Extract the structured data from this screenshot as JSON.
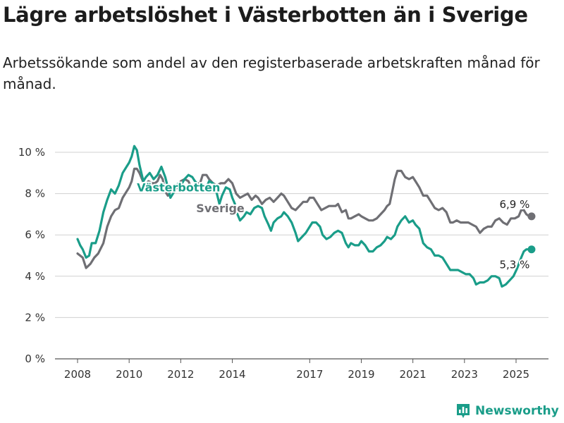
{
  "title": "Lägre arbetslöshet i Västerbotten än i Sverige",
  "subtitle": "Arbetssökande som andel av den registerbaserade arbetskraften månad för månad.",
  "brand": {
    "name": "Newsworthy",
    "icon": "bar-chart-icon",
    "color": "#1a9d89"
  },
  "chart_data": {
    "type": "line",
    "xlabel": "",
    "ylabel": "",
    "xlim": [
      2007.6,
      2026.3
    ],
    "ylim": [
      0,
      10
    ],
    "grid": true,
    "y_ticks": [
      0,
      2,
      4,
      6,
      8,
      10
    ],
    "y_tick_labels": [
      "0 %",
      "2 %",
      "4 %",
      "6 %",
      "8 %",
      "10 %"
    ],
    "x_ticks": [
      2008,
      2010,
      2012,
      2014,
      2017,
      2019,
      2021,
      2023,
      2025
    ],
    "x_tick_labels": [
      "2008",
      "2010",
      "2012",
      "2014",
      "2017",
      "2019",
      "2021",
      "2023",
      "2025"
    ],
    "series": [
      {
        "name": "Sverige",
        "color": "#6f6f74",
        "end_label": "6,9 %",
        "label_at": [
          2012.6,
          7.1
        ],
        "points": [
          [
            2008.0,
            5.1
          ],
          [
            2008.2,
            4.9
          ],
          [
            2008.33,
            4.4
          ],
          [
            2008.5,
            4.6
          ],
          [
            2008.65,
            4.9
          ],
          [
            2008.8,
            5.1
          ],
          [
            2009.0,
            5.6
          ],
          [
            2009.15,
            6.4
          ],
          [
            2009.3,
            6.9
          ],
          [
            2009.45,
            7.2
          ],
          [
            2009.6,
            7.3
          ],
          [
            2009.75,
            7.8
          ],
          [
            2009.9,
            8.1
          ],
          [
            2010.0,
            8.3
          ],
          [
            2010.1,
            8.6
          ],
          [
            2010.2,
            9.2
          ],
          [
            2010.3,
            9.2
          ],
          [
            2010.4,
            9.0
          ],
          [
            2010.5,
            8.7
          ],
          [
            2010.6,
            8.4
          ],
          [
            2010.75,
            8.6
          ],
          [
            2010.9,
            8.5
          ],
          [
            2011.0,
            8.5
          ],
          [
            2011.1,
            8.6
          ],
          [
            2011.2,
            8.9
          ],
          [
            2011.3,
            8.7
          ],
          [
            2011.4,
            8.1
          ],
          [
            2011.5,
            7.9
          ],
          [
            2011.6,
            8.1
          ],
          [
            2011.75,
            8.2
          ],
          [
            2011.9,
            8.3
          ],
          [
            2012.0,
            8.6
          ],
          [
            2012.15,
            8.7
          ],
          [
            2012.3,
            8.6
          ],
          [
            2012.4,
            8.3
          ],
          [
            2012.5,
            8.4
          ],
          [
            2012.6,
            8.5
          ],
          [
            2012.75,
            8.5
          ],
          [
            2012.85,
            8.9
          ],
          [
            2013.0,
            8.9
          ],
          [
            2013.1,
            8.7
          ],
          [
            2013.25,
            8.5
          ],
          [
            2013.4,
            8.4
          ],
          [
            2013.55,
            8.5
          ],
          [
            2013.7,
            8.5
          ],
          [
            2013.85,
            8.7
          ],
          [
            2014.0,
            8.5
          ],
          [
            2014.15,
            8.0
          ],
          [
            2014.3,
            7.8
          ],
          [
            2014.45,
            7.9
          ],
          [
            2014.6,
            8.0
          ],
          [
            2014.75,
            7.7
          ],
          [
            2014.9,
            7.9
          ],
          [
            2015.0,
            7.8
          ],
          [
            2015.15,
            7.5
          ],
          [
            2015.3,
            7.7
          ],
          [
            2015.45,
            7.8
          ],
          [
            2015.6,
            7.6
          ],
          [
            2015.75,
            7.8
          ],
          [
            2015.9,
            8.0
          ],
          [
            2016.0,
            7.9
          ],
          [
            2016.15,
            7.6
          ],
          [
            2016.3,
            7.3
          ],
          [
            2016.45,
            7.2
          ],
          [
            2016.6,
            7.4
          ],
          [
            2016.75,
            7.6
          ],
          [
            2016.9,
            7.6
          ],
          [
            2017.0,
            7.8
          ],
          [
            2017.15,
            7.8
          ],
          [
            2017.3,
            7.5
          ],
          [
            2017.45,
            7.2
          ],
          [
            2017.6,
            7.3
          ],
          [
            2017.75,
            7.4
          ],
          [
            2017.9,
            7.4
          ],
          [
            2018.0,
            7.4
          ],
          [
            2018.1,
            7.5
          ],
          [
            2018.25,
            7.1
          ],
          [
            2018.4,
            7.2
          ],
          [
            2018.5,
            6.8
          ],
          [
            2018.6,
            6.8
          ],
          [
            2018.75,
            6.9
          ],
          [
            2018.9,
            7.0
          ],
          [
            2019.0,
            6.9
          ],
          [
            2019.15,
            6.8
          ],
          [
            2019.3,
            6.7
          ],
          [
            2019.45,
            6.7
          ],
          [
            2019.6,
            6.8
          ],
          [
            2019.75,
            7.0
          ],
          [
            2019.9,
            7.2
          ],
          [
            2020.0,
            7.4
          ],
          [
            2020.1,
            7.5
          ],
          [
            2020.2,
            8.1
          ],
          [
            2020.3,
            8.7
          ],
          [
            2020.4,
            9.1
          ],
          [
            2020.55,
            9.1
          ],
          [
            2020.7,
            8.8
          ],
          [
            2020.85,
            8.7
          ],
          [
            2021.0,
            8.8
          ],
          [
            2021.1,
            8.6
          ],
          [
            2021.25,
            8.3
          ],
          [
            2021.4,
            7.9
          ],
          [
            2021.55,
            7.9
          ],
          [
            2021.7,
            7.6
          ],
          [
            2021.85,
            7.3
          ],
          [
            2022.0,
            7.2
          ],
          [
            2022.15,
            7.3
          ],
          [
            2022.3,
            7.1
          ],
          [
            2022.45,
            6.6
          ],
          [
            2022.55,
            6.6
          ],
          [
            2022.7,
            6.7
          ],
          [
            2022.85,
            6.6
          ],
          [
            2023.0,
            6.6
          ],
          [
            2023.15,
            6.6
          ],
          [
            2023.3,
            6.5
          ],
          [
            2023.45,
            6.4
          ],
          [
            2023.6,
            6.1
          ],
          [
            2023.75,
            6.3
          ],
          [
            2023.9,
            6.4
          ],
          [
            2024.05,
            6.4
          ],
          [
            2024.2,
            6.7
          ],
          [
            2024.35,
            6.8
          ],
          [
            2024.5,
            6.6
          ],
          [
            2024.65,
            6.5
          ],
          [
            2024.8,
            6.8
          ],
          [
            2024.95,
            6.8
          ],
          [
            2025.1,
            6.9
          ],
          [
            2025.2,
            7.2
          ],
          [
            2025.3,
            7.2
          ],
          [
            2025.4,
            7.0
          ],
          [
            2025.5,
            6.9
          ],
          [
            2025.6,
            6.9
          ]
        ]
      },
      {
        "name": "Västerbotten",
        "color": "#1a9d89",
        "end_label": "5,3 %",
        "label_at": [
          2010.3,
          8.1
        ],
        "points": [
          [
            2008.0,
            5.8
          ],
          [
            2008.1,
            5.5
          ],
          [
            2008.2,
            5.3
          ],
          [
            2008.33,
            4.9
          ],
          [
            2008.45,
            5.0
          ],
          [
            2008.55,
            5.6
          ],
          [
            2008.7,
            5.6
          ],
          [
            2008.85,
            6.2
          ],
          [
            2009.0,
            7.1
          ],
          [
            2009.15,
            7.7
          ],
          [
            2009.3,
            8.2
          ],
          [
            2009.45,
            8.0
          ],
          [
            2009.6,
            8.4
          ],
          [
            2009.75,
            9.0
          ],
          [
            2009.9,
            9.3
          ],
          [
            2010.0,
            9.5
          ],
          [
            2010.1,
            9.8
          ],
          [
            2010.2,
            10.3
          ],
          [
            2010.3,
            10.1
          ],
          [
            2010.4,
            9.4
          ],
          [
            2010.55,
            8.6
          ],
          [
            2010.65,
            8.8
          ],
          [
            2010.8,
            9.0
          ],
          [
            2010.95,
            8.7
          ],
          [
            2011.1,
            8.9
          ],
          [
            2011.25,
            9.3
          ],
          [
            2011.4,
            8.8
          ],
          [
            2011.5,
            8.3
          ],
          [
            2011.6,
            7.8
          ],
          [
            2011.75,
            8.1
          ],
          [
            2011.9,
            8.5
          ],
          [
            2012.0,
            8.4
          ],
          [
            2012.15,
            8.7
          ],
          [
            2012.3,
            8.9
          ],
          [
            2012.45,
            8.8
          ],
          [
            2012.55,
            8.6
          ],
          [
            2012.7,
            8.4
          ],
          [
            2012.85,
            8.2
          ],
          [
            2013.0,
            8.3
          ],
          [
            2013.1,
            8.6
          ],
          [
            2013.25,
            8.5
          ],
          [
            2013.4,
            8.0
          ],
          [
            2013.5,
            7.5
          ],
          [
            2013.6,
            7.9
          ],
          [
            2013.75,
            8.3
          ],
          [
            2013.9,
            8.2
          ],
          [
            2014.0,
            7.8
          ],
          [
            2014.1,
            7.5
          ],
          [
            2014.2,
            7.0
          ],
          [
            2014.3,
            6.7
          ],
          [
            2014.45,
            6.9
          ],
          [
            2014.55,
            7.1
          ],
          [
            2014.7,
            7.0
          ],
          [
            2014.85,
            7.3
          ],
          [
            2015.0,
            7.4
          ],
          [
            2015.15,
            7.3
          ],
          [
            2015.25,
            6.9
          ],
          [
            2015.4,
            6.5
          ],
          [
            2015.5,
            6.2
          ],
          [
            2015.6,
            6.6
          ],
          [
            2015.75,
            6.8
          ],
          [
            2015.9,
            6.9
          ],
          [
            2016.0,
            7.1
          ],
          [
            2016.15,
            6.9
          ],
          [
            2016.3,
            6.6
          ],
          [
            2016.45,
            6.1
          ],
          [
            2016.55,
            5.7
          ],
          [
            2016.7,
            5.9
          ],
          [
            2016.85,
            6.1
          ],
          [
            2017.0,
            6.4
          ],
          [
            2017.1,
            6.6
          ],
          [
            2017.25,
            6.6
          ],
          [
            2017.4,
            6.4
          ],
          [
            2017.5,
            6.0
          ],
          [
            2017.65,
            5.8
          ],
          [
            2017.8,
            5.9
          ],
          [
            2017.95,
            6.1
          ],
          [
            2018.1,
            6.2
          ],
          [
            2018.25,
            6.1
          ],
          [
            2018.4,
            5.6
          ],
          [
            2018.5,
            5.4
          ],
          [
            2018.6,
            5.6
          ],
          [
            2018.75,
            5.5
          ],
          [
            2018.9,
            5.5
          ],
          [
            2019.0,
            5.7
          ],
          [
            2019.15,
            5.5
          ],
          [
            2019.3,
            5.2
          ],
          [
            2019.45,
            5.2
          ],
          [
            2019.6,
            5.4
          ],
          [
            2019.75,
            5.5
          ],
          [
            2019.9,
            5.7
          ],
          [
            2020.0,
            5.9
          ],
          [
            2020.15,
            5.8
          ],
          [
            2020.3,
            6.0
          ],
          [
            2020.4,
            6.4
          ],
          [
            2020.55,
            6.7
          ],
          [
            2020.7,
            6.9
          ],
          [
            2020.85,
            6.6
          ],
          [
            2021.0,
            6.7
          ],
          [
            2021.1,
            6.5
          ],
          [
            2021.25,
            6.3
          ],
          [
            2021.4,
            5.6
          ],
          [
            2021.55,
            5.4
          ],
          [
            2021.7,
            5.3
          ],
          [
            2021.85,
            5.0
          ],
          [
            2022.0,
            5.0
          ],
          [
            2022.15,
            4.9
          ],
          [
            2022.3,
            4.6
          ],
          [
            2022.45,
            4.3
          ],
          [
            2022.6,
            4.3
          ],
          [
            2022.75,
            4.3
          ],
          [
            2022.9,
            4.2
          ],
          [
            2023.05,
            4.1
          ],
          [
            2023.2,
            4.1
          ],
          [
            2023.35,
            3.9
          ],
          [
            2023.45,
            3.6
          ],
          [
            2023.6,
            3.7
          ],
          [
            2023.75,
            3.7
          ],
          [
            2023.9,
            3.8
          ],
          [
            2024.05,
            4.0
          ],
          [
            2024.2,
            4.0
          ],
          [
            2024.35,
            3.9
          ],
          [
            2024.45,
            3.5
          ],
          [
            2024.6,
            3.6
          ],
          [
            2024.75,
            3.8
          ],
          [
            2024.9,
            4.0
          ],
          [
            2025.05,
            4.4
          ],
          [
            2025.2,
            4.9
          ],
          [
            2025.3,
            5.2
          ],
          [
            2025.4,
            5.3
          ],
          [
            2025.5,
            5.3
          ],
          [
            2025.6,
            5.3
          ]
        ]
      }
    ]
  }
}
